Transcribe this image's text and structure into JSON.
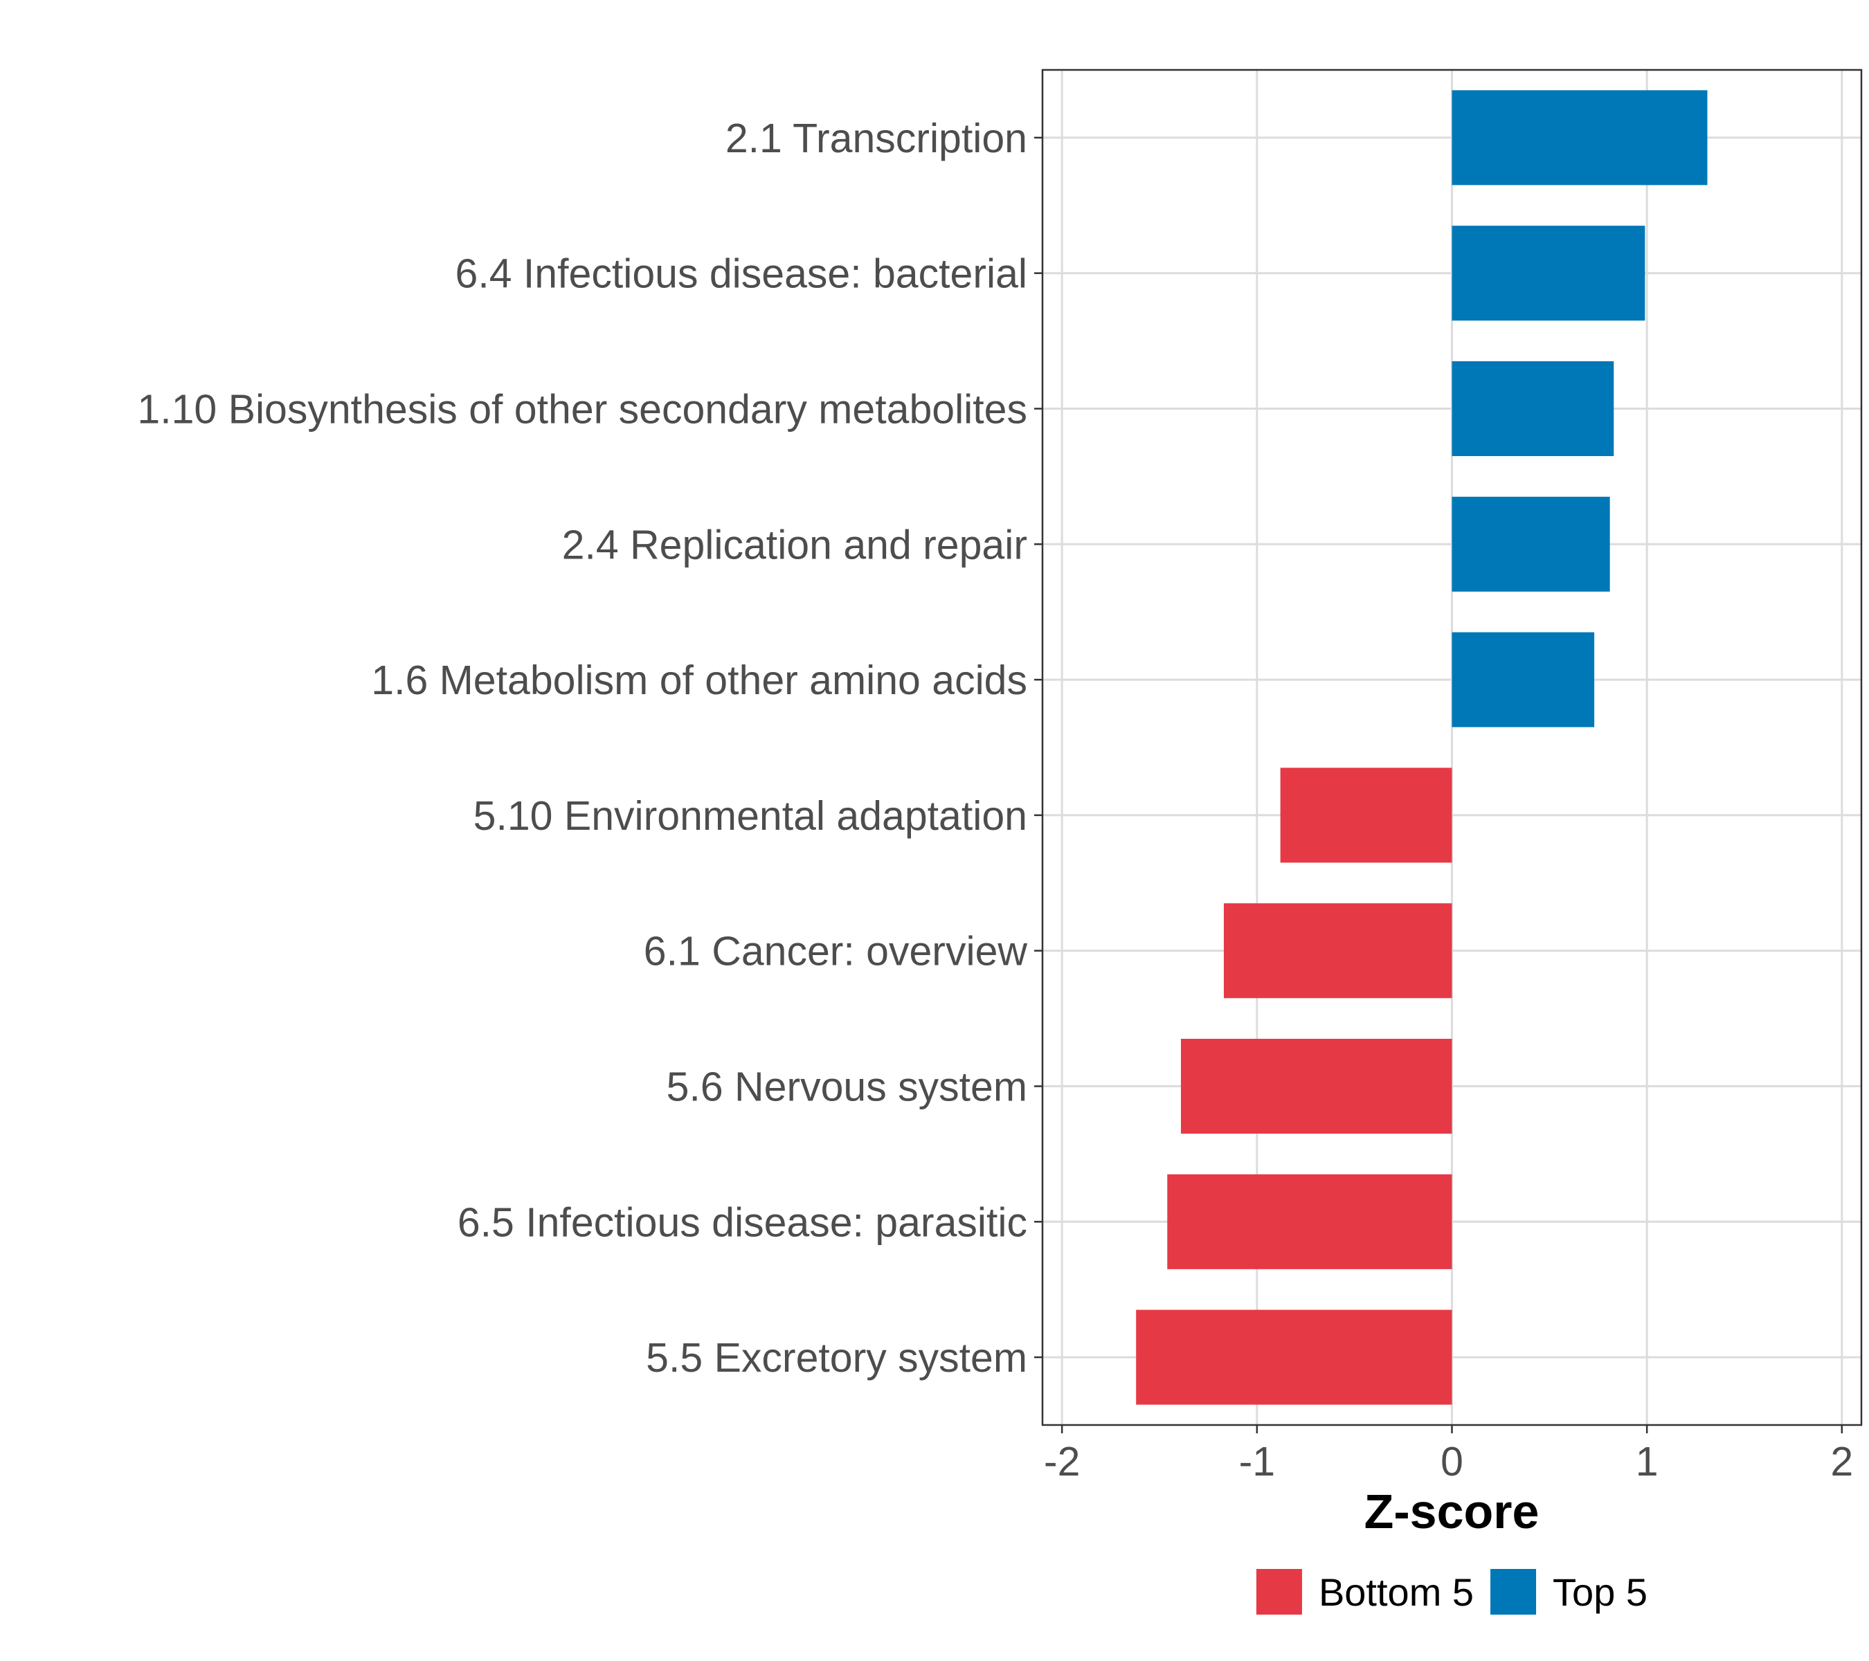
{
  "chart_data": {
    "type": "bar",
    "orientation": "horizontal",
    "categories": [
      "2.1 Transcription",
      "6.4 Infectious disease: bacterial",
      "1.10 Biosynthesis of other secondary metabolites",
      "2.4 Replication and repair",
      "1.6 Metabolism of other amino acids",
      "5.10 Environmental adaptation",
      "6.1 Cancer: overview",
      "5.6 Nervous system",
      "6.5 Infectious disease: parasitic",
      "5.5 Excretory system"
    ],
    "values": [
      1.31,
      0.99,
      0.83,
      0.81,
      0.73,
      -0.88,
      -1.17,
      -1.39,
      -1.46,
      -1.62
    ],
    "groups": [
      "Top 5",
      "Top 5",
      "Top 5",
      "Top 5",
      "Top 5",
      "Bottom 5",
      "Bottom 5",
      "Bottom 5",
      "Bottom 5",
      "Bottom 5"
    ],
    "xlabel": "Z-score",
    "ylabel": "",
    "xlim": [
      -2.1,
      2.1
    ],
    "xticks": [
      -2,
      -1,
      0,
      1,
      2
    ],
    "xtick_labels": [
      "-2",
      "-1",
      "0",
      "1",
      "2"
    ],
    "grid": true,
    "legend": {
      "position": "bottom",
      "entries": [
        {
          "label": "Bottom 5",
          "color": "#E63946"
        },
        {
          "label": "Top 5",
          "color": "#0077B6"
        }
      ]
    },
    "colors": {
      "Bottom 5": "#E63946",
      "Top 5": "#0077B6"
    }
  }
}
